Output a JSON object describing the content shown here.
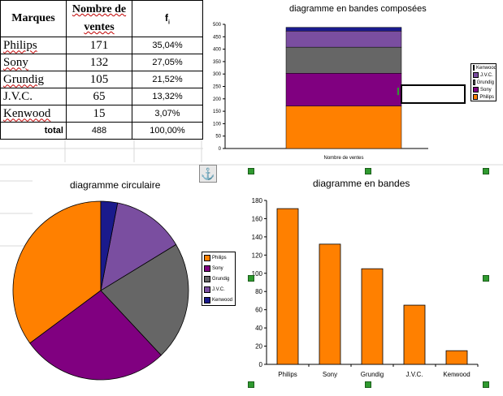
{
  "table": {
    "headers": [
      "Marques",
      "Nombre de ventes",
      "f"
    ],
    "header_sub": "i",
    "rows": [
      {
        "brand": "Philips",
        "count": "171",
        "pct": "35,04%"
      },
      {
        "brand": "Sony",
        "count": "132",
        "pct": "27,05%"
      },
      {
        "brand": "Grundig",
        "count": "105",
        "pct": "21,52%"
      },
      {
        "brand": "J.V.C.",
        "count": "65",
        "pct": "13,32%"
      },
      {
        "brand": "Kenwood",
        "count": "15",
        "pct": "3,07%"
      }
    ],
    "total": {
      "label": "total",
      "count": "488",
      "pct": "100,00%"
    }
  },
  "colors": {
    "Philips": "#ff8000",
    "Sony": "#800080",
    "Grundig": "#666666",
    "J.V.C.": "#7a4ea0",
    "Kenwood": "#1a1a8c"
  },
  "chart_data": [
    {
      "type": "bar",
      "stacked": true,
      "title": "diagramme en bandes composées",
      "categories": [
        "Nombre de ventes"
      ],
      "series": [
        {
          "name": "Philips",
          "values": [
            171
          ]
        },
        {
          "name": "Sony",
          "values": [
            132
          ]
        },
        {
          "name": "Grundig",
          "values": [
            105
          ]
        },
        {
          "name": "J.V.C.",
          "values": [
            65
          ]
        },
        {
          "name": "Kenwood",
          "values": [
            15
          ]
        }
      ],
      "ylim": [
        0,
        500
      ],
      "yticks": [
        "0",
        "50",
        "100",
        "150",
        "200",
        "250",
        "300",
        "350",
        "400",
        "450",
        "500"
      ],
      "legend": [
        "Kenwood",
        "J.V.C.",
        "Grundig",
        "Sony",
        "Philips"
      ],
      "legend_position": "right",
      "grid": false
    },
    {
      "type": "pie",
      "title": "diagramme circulaire",
      "labels": [
        "Philips",
        "Sony",
        "Grundig",
        "J.V.C.",
        "Kenwood"
      ],
      "values": [
        171,
        132,
        105,
        65,
        15
      ],
      "legend": [
        "Philips",
        "Sony",
        "Grundig",
        "J.V.C.",
        "Kenwood"
      ],
      "legend_position": "right"
    },
    {
      "type": "bar",
      "title": "diagramme en bandes",
      "categories": [
        "Philips",
        "Sony",
        "Grundig",
        "J.V.C.",
        "Kenwood"
      ],
      "values": [
        171,
        132,
        105,
        65,
        15
      ],
      "ylim": [
        0,
        180
      ],
      "yticks": [
        "0",
        "20",
        "40",
        "60",
        "80",
        "100",
        "120",
        "140",
        "160",
        "180"
      ],
      "bar_color": "#ff8000",
      "grid": false
    }
  ]
}
